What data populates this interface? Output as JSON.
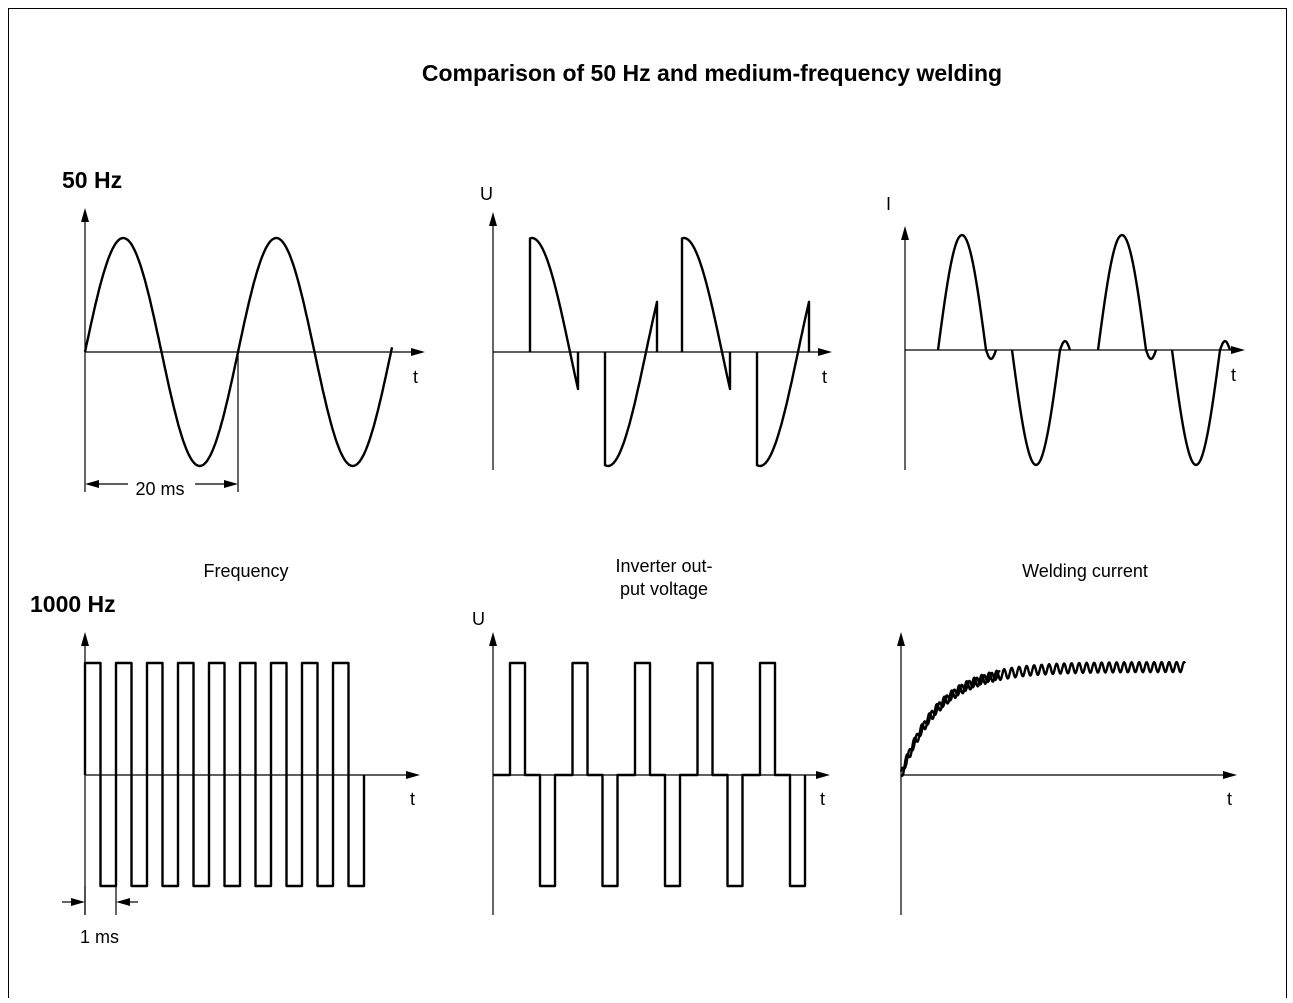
{
  "title": "Comparison of 50 Hz and medium-frequency welding",
  "rows": [
    {
      "label": "50 Hz"
    },
    {
      "label": "1000 Hz"
    }
  ],
  "column_captions": [
    [
      "Frequency"
    ],
    [
      "Inverter out-",
      "put voltage"
    ],
    [
      "Welding current"
    ]
  ],
  "panels": [
    {
      "x_label": "t",
      "annotation": "20 ms"
    },
    {
      "y_label": "U",
      "x_label": "t"
    },
    {
      "y_label": "I",
      "x_label": "t"
    },
    {
      "x_label": "t",
      "annotation": "1 ms"
    },
    {
      "y_label": "U",
      "x_label": "t"
    },
    {
      "x_label": "t"
    }
  ]
}
